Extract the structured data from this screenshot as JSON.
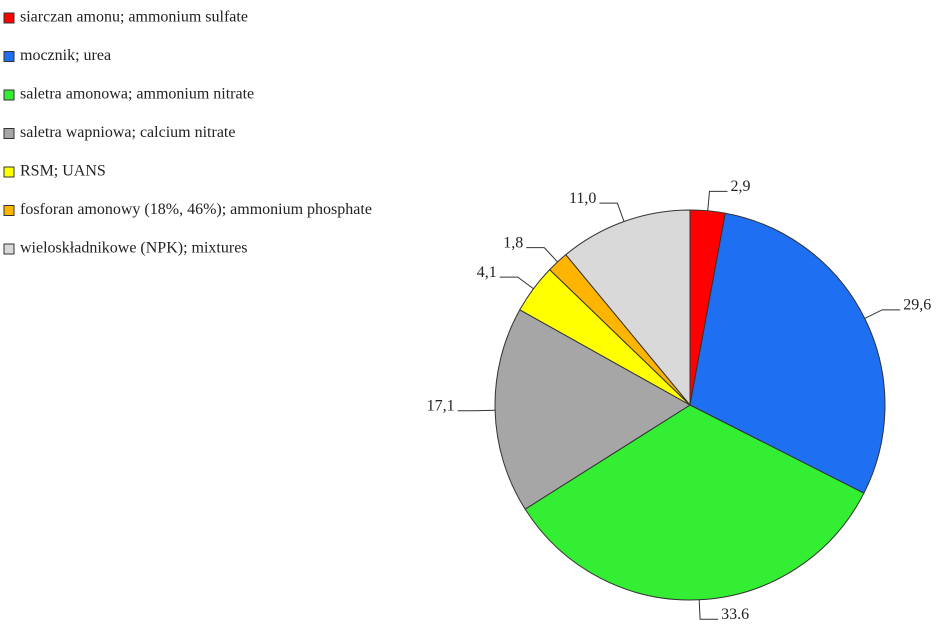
{
  "chart_data": {
    "type": "pie",
    "categories": [
      "siarczan amonu; ammonium sulfate",
      "mocznik; urea",
      "saletra amonowa; ammonium nitrate",
      "saletra wapniowa; calcium nitrate",
      "RSM; UANS",
      "fosforan amonowy (18%, 46%); ammonium phosphate",
      "wieloskładnikowe (NPK); mixtures"
    ],
    "values": [
      2.9,
      29.6,
      33.6,
      17.1,
      4.1,
      1.8,
      11.0
    ],
    "value_labels": [
      "2,9",
      "29,6",
      "33.6",
      "17,1",
      "4,1",
      "1,8",
      "11,0"
    ],
    "colors": [
      "#ff0000",
      "#1f6ff2",
      "#33ee33",
      "#a6a6a6",
      "#ffff00",
      "#ffb400",
      "#d9d9d9"
    ],
    "legend": "top-left"
  }
}
